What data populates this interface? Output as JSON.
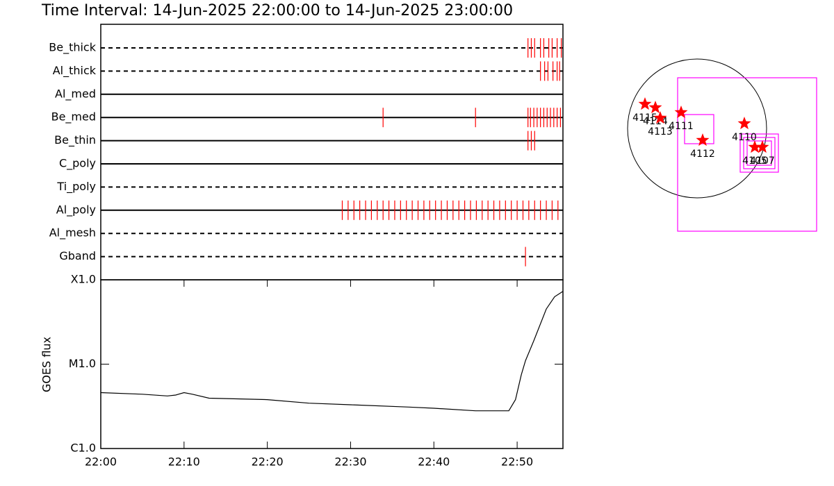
{
  "chart_data": [
    {
      "type": "timeline",
      "title": "Time Interval: 14-Jun-2025 22:00:00 to 14-Jun-2025 23:00:00",
      "color": "#ff0000",
      "xlim": [
        0,
        55.5
      ],
      "rows": [
        {
          "name": "Be_thick",
          "style": "dashed",
          "times": [
            51.3,
            51.7,
            52.1,
            52.8,
            53.2,
            53.8,
            54.2,
            54.8,
            55.3
          ]
        },
        {
          "name": "Al_thick",
          "style": "dashed",
          "times": [
            52.8,
            53.3,
            53.7,
            54.3,
            54.8,
            55.1
          ]
        },
        {
          "name": "Al_med",
          "style": "solid",
          "times": []
        },
        {
          "name": "Be_med",
          "style": "solid",
          "times": [
            33.9,
            45.0,
            51.3,
            51.6,
            52.0,
            52.4,
            52.8,
            53.2,
            53.6,
            54.0,
            54.4,
            54.8,
            55.2
          ]
        },
        {
          "name": "Be_thin",
          "style": "solid",
          "times": [
            51.3,
            51.7,
            52.1
          ]
        },
        {
          "name": "C_poly",
          "style": "solid",
          "times": []
        },
        {
          "name": "Ti_poly",
          "style": "dashed",
          "times": []
        },
        {
          "name": "Al_poly",
          "style": "solid",
          "times": [
            29.0,
            29.7,
            30.4,
            31.1,
            31.8,
            32.5,
            33.2,
            33.9,
            34.6,
            35.3,
            36.0,
            36.7,
            37.4,
            38.1,
            38.8,
            39.5,
            40.2,
            40.9,
            41.6,
            42.3,
            43.0,
            43.7,
            44.4,
            45.1,
            45.8,
            46.5,
            47.2,
            47.9,
            48.6,
            49.3,
            50.0,
            50.7,
            51.4,
            52.1,
            52.8,
            53.5,
            54.2,
            54.9
          ]
        },
        {
          "name": "Al_mesh",
          "style": "dashed",
          "times": []
        },
        {
          "name": "Gband",
          "style": "dashed",
          "times": [
            51.0
          ]
        }
      ]
    },
    {
      "type": "line",
      "ylabel": "GOES flux",
      "color": "#000000",
      "log_scale": true,
      "xlim": [
        0,
        55.5
      ],
      "xticks": [
        {
          "value": 0,
          "label": "22:00"
        },
        {
          "value": 10,
          "label": "22:10"
        },
        {
          "value": 20,
          "label": "22:20"
        },
        {
          "value": 30,
          "label": "22:30"
        },
        {
          "value": 40,
          "label": "22:40"
        },
        {
          "value": 50,
          "label": "22:50"
        }
      ],
      "ylim": [
        1e-06,
        0.0001
      ],
      "yticks": [
        {
          "value": 1e-06,
          "label": "C1.0"
        },
        {
          "value": 1e-05,
          "label": "M1.0"
        },
        {
          "value": 0.0001,
          "label": "X1.0"
        }
      ],
      "x": [
        0,
        5,
        8,
        9,
        10,
        11,
        13,
        20,
        25,
        30,
        37,
        40,
        45,
        49,
        49.8,
        50.5,
        51,
        52,
        53.5,
        54.5,
        55.5
      ],
      "values": [
        4.6e-06,
        4.4e-06,
        4.2e-06,
        4.3e-06,
        4.6e-06,
        4.4e-06,
        3.95e-06,
        3.8e-06,
        3.45e-06,
        3.3e-06,
        3.1e-06,
        3e-06,
        2.8e-06,
        2.8e-06,
        3.8e-06,
        7.5e-06,
        1.1e-05,
        1.9e-05,
        4.5e-05,
        6.3e-05,
        7.3e-05
      ]
    },
    {
      "type": "map",
      "star_color": "#ff0000",
      "box_color": "#ff00ff",
      "regions": [
        "4115",
        "4114",
        "4113",
        "4111",
        "4112",
        "4110",
        "4105",
        "4107"
      ]
    }
  ]
}
